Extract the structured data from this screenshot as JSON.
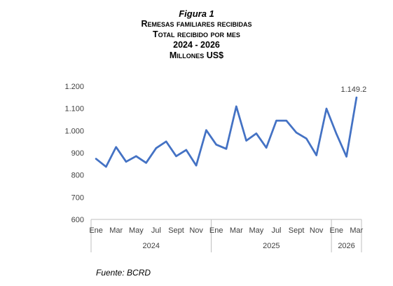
{
  "titles": {
    "figure": "Figura 1",
    "line1": "Remesas familiares recibidas",
    "line2": "Total recibido por mes",
    "line3": "2024 - 2026",
    "line4": "Millones US$"
  },
  "source": "Fuente: BCRD",
  "colors": {
    "line": "#4472C4",
    "axis": "#BFBFBF",
    "text": "#404040"
  },
  "chart_data": {
    "type": "line",
    "title": "Remesas familiares recibidas — Total recibido por mes — 2024 - 2026 — Millones US$",
    "ylim": [
      600,
      1200
    ],
    "yticks": [
      600,
      700,
      800,
      900,
      1000,
      1100,
      1200
    ],
    "ytick_labels": [
      "600",
      "700",
      "800",
      "900",
      "1.000",
      "1.100",
      "1.200"
    ],
    "grid": false,
    "x": [
      "Ene 2024",
      "Feb 2024",
      "Mar 2024",
      "Abr 2024",
      "May 2024",
      "Jun 2024",
      "Jul 2024",
      "Ago 2024",
      "Sept 2024",
      "Oct 2024",
      "Nov 2024",
      "Dic 2024",
      "Ene 2025",
      "Feb 2025",
      "Mar 2025",
      "Abr 2025",
      "May 2025",
      "Jun 2025",
      "Jul 2025",
      "Ago 2025",
      "Sept 2025",
      "Oct 2025",
      "Nov 2025",
      "Dic 2025",
      "Ene 2026",
      "Feb 2026",
      "Mar 2026"
    ],
    "month_labels": [
      "Ene",
      "",
      "Mar",
      "",
      "May",
      "",
      "Jul",
      "",
      "Sept",
      "",
      "Nov",
      "",
      "Ene",
      "",
      "Mar",
      "",
      "May",
      "",
      "Jul",
      "",
      "Sept",
      "",
      "Nov",
      "",
      "Ene",
      "",
      "Mar"
    ],
    "year_groups": [
      {
        "label": "2024",
        "start": 0,
        "end": 11
      },
      {
        "label": "2025",
        "start": 12,
        "end": 23
      },
      {
        "label": "2026",
        "start": 24,
        "end": 26
      }
    ],
    "series": [
      {
        "values": [
          873,
          837,
          926,
          860,
          885,
          855,
          921,
          951,
          885,
          913,
          843,
          1002,
          937,
          918,
          1109,
          955,
          987,
          923,
          1045,
          1045,
          991,
          964,
          889,
          1099,
          985,
          883,
          1149.2
        ]
      }
    ],
    "annotations": [
      {
        "index": 26,
        "text": "1.149.2"
      }
    ]
  }
}
